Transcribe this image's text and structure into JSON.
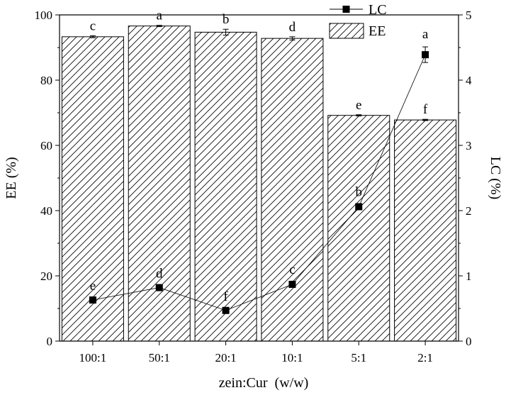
{
  "chart_data": {
    "type": "bar+line",
    "categories": [
      "100:1",
      "50:1",
      "20:1",
      "10:1",
      "5:1",
      "2:1"
    ],
    "xlabel": "zein:Cur  (w/w)",
    "y_left": {
      "label": "EE (%)",
      "lim": [
        0,
        100
      ],
      "ticks": [
        0,
        20,
        40,
        60,
        80,
        100
      ]
    },
    "y_right": {
      "label": "LC (%)",
      "lim": [
        0,
        5
      ],
      "ticks": [
        0,
        1,
        2,
        3,
        4,
        5
      ]
    },
    "series": [
      {
        "name": "EE",
        "kind": "bar",
        "axis": "left",
        "values": [
          93.3,
          96.6,
          94.7,
          92.8,
          69.2,
          67.8
        ],
        "errors": [
          0.3,
          0.2,
          0.9,
          0.5,
          0.2,
          0.2
        ],
        "labels": [
          "c",
          "a",
          "b",
          "d",
          "e",
          "f"
        ]
      },
      {
        "name": "LC",
        "kind": "line",
        "axis": "right",
        "values": [
          0.63,
          0.82,
          0.47,
          0.87,
          2.06,
          4.39
        ],
        "errors": [
          0.02,
          0.02,
          0.02,
          0.03,
          0.03,
          0.12
        ],
        "labels": [
          "e",
          "d",
          "f",
          "c",
          "b",
          "a"
        ]
      }
    ],
    "legend": {
      "position": "top-right",
      "entries": [
        "LC",
        "EE"
      ]
    }
  }
}
